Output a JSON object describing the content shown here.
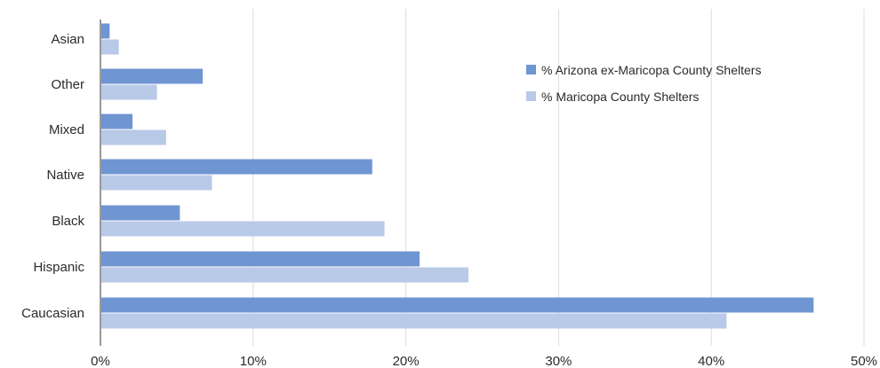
{
  "chart_data": {
    "type": "bar",
    "orientation": "horizontal",
    "title": "",
    "xlabel": "",
    "ylabel": "",
    "categories": [
      "Asian",
      "Other",
      "Mixed",
      "Native",
      "Black",
      "Hispanic",
      "Caucasian"
    ],
    "series": [
      {
        "name": "% Arizona ex-Maricopa County Shelters",
        "color": "#6f95d3",
        "values": [
          0.6,
          6.7,
          2.1,
          17.8,
          5.2,
          20.9,
          46.7
        ]
      },
      {
        "name": "% Maricopa County Shelters",
        "color": "#b9c9e8",
        "values": [
          1.2,
          3.7,
          4.3,
          7.3,
          18.6,
          24.1,
          41.0
        ]
      }
    ],
    "xlim": [
      0,
      50
    ],
    "xticks": [
      "0%",
      "10%",
      "20%",
      "30%",
      "40%",
      "50%"
    ],
    "grid": "vertical",
    "legend": "top-right"
  }
}
